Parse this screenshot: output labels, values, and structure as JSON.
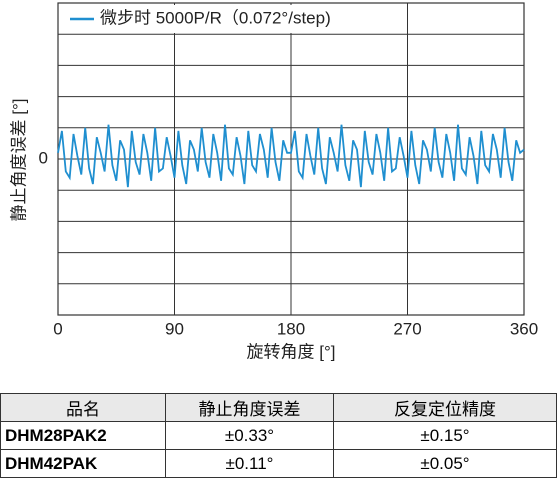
{
  "chart_data": {
    "type": "line",
    "ylabel": "静止角度误差 [°]",
    "xlabel": "旋转角度 [°]",
    "xlim": [
      0,
      360
    ],
    "xticks": [
      0,
      90,
      180,
      270,
      360
    ],
    "ylim": [
      -5,
      5
    ],
    "yticks": [
      0
    ],
    "grid": true,
    "legend": "upper left",
    "x": [
      0,
      3,
      6,
      9,
      12,
      15,
      18,
      21,
      24,
      27,
      30,
      33,
      36,
      39,
      42,
      45,
      48,
      51,
      54,
      57,
      60,
      63,
      66,
      69,
      72,
      75,
      78,
      81,
      84,
      87,
      90,
      93,
      96,
      99,
      102,
      105,
      108,
      111,
      114,
      117,
      120,
      123,
      126,
      129,
      132,
      135,
      138,
      141,
      144,
      147,
      150,
      153,
      156,
      159,
      162,
      165,
      168,
      171,
      174,
      177,
      180,
      183,
      186,
      189,
      192,
      195,
      198,
      201,
      204,
      207,
      210,
      213,
      216,
      219,
      222,
      225,
      228,
      231,
      234,
      237,
      240,
      243,
      246,
      249,
      252,
      255,
      258,
      261,
      264,
      267,
      270,
      273,
      276,
      279,
      282,
      285,
      288,
      291,
      294,
      297,
      300,
      303,
      306,
      309,
      312,
      315,
      318,
      321,
      324,
      327,
      330,
      333,
      336,
      339,
      342,
      345,
      348,
      351,
      354,
      357,
      360
    ],
    "series": [
      {
        "name": "微步时 5000P/R（0.072°/step)",
        "color": "#1f8fd0",
        "values": [
          0.2,
          0.9,
          -0.4,
          -0.6,
          0.8,
          0.1,
          -0.5,
          1.0,
          -0.3,
          -0.8,
          0.7,
          0.2,
          -0.4,
          1.1,
          -0.2,
          -0.7,
          0.6,
          0.3,
          -0.9,
          0.9,
          -0.1,
          -0.5,
          0.8,
          0.2,
          -0.7,
          1.0,
          -0.4,
          -0.3,
          0.7,
          0.1,
          -0.6,
          0.9,
          -0.2,
          -0.8,
          0.6,
          0.3,
          -0.4,
          1.0,
          -0.1,
          -0.6,
          0.8,
          0.2,
          -0.7,
          1.1,
          -0.3,
          -0.5,
          0.7,
          0.1,
          -0.8,
          0.9,
          -0.2,
          -0.4,
          0.8,
          0.3,
          -0.6,
          1.0,
          -0.1,
          -0.7,
          0.6,
          0.2,
          0.2,
          0.9,
          -0.4,
          -0.6,
          0.8,
          0.1,
          -0.5,
          1.0,
          -0.3,
          -0.8,
          0.7,
          0.2,
          -0.4,
          1.1,
          -0.2,
          -0.7,
          0.6,
          0.3,
          -0.9,
          0.9,
          -0.1,
          -0.5,
          0.8,
          0.2,
          -0.7,
          1.0,
          -0.4,
          -0.3,
          0.7,
          0.1,
          -0.6,
          0.9,
          -0.2,
          -0.8,
          0.6,
          0.3,
          -0.4,
          1.0,
          -0.1,
          -0.6,
          0.8,
          0.2,
          -0.7,
          1.1,
          -0.3,
          -0.5,
          0.7,
          0.1,
          -0.8,
          0.9,
          -0.2,
          -0.4,
          0.8,
          0.3,
          -0.6,
          1.0,
          -0.1,
          -0.7,
          0.6,
          0.2,
          0.3
        ]
      }
    ]
  },
  "table": {
    "header": [
      "品名",
      "静止角度误差",
      "反复定位精度"
    ],
    "rows": [
      [
        "DHM28PAK2",
        "±0.33°",
        "±0.15°"
      ],
      [
        "DHM42PAK",
        "±0.11°",
        "±0.05°"
      ]
    ]
  }
}
